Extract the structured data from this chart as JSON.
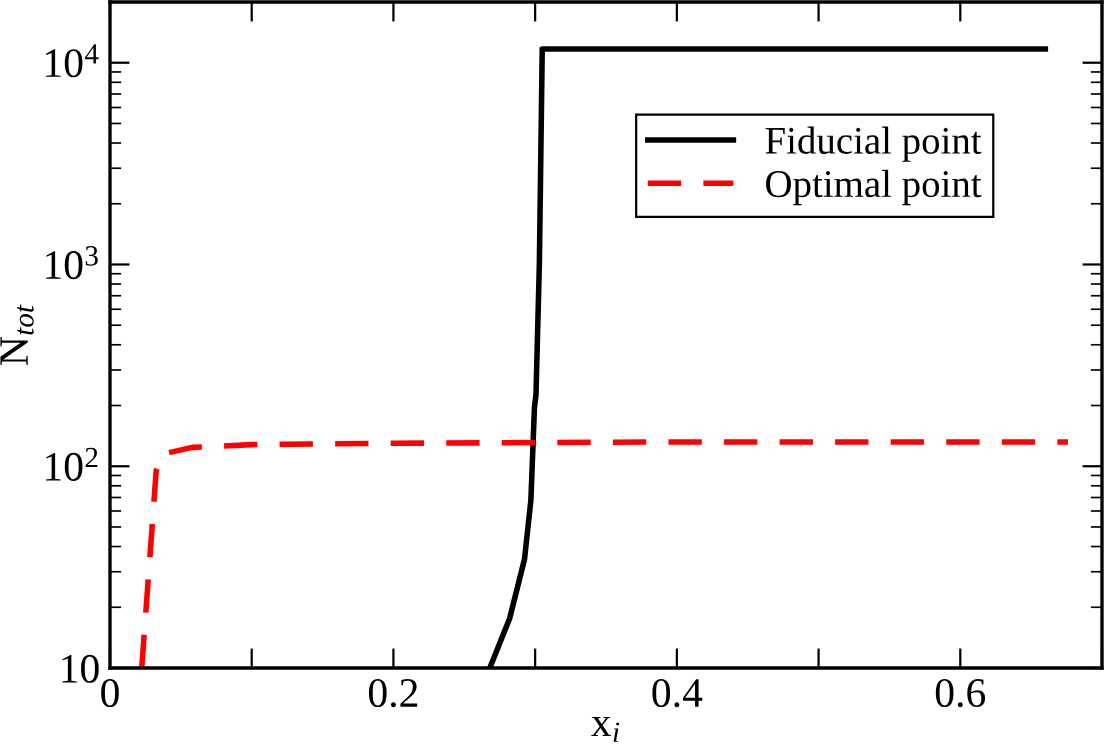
{
  "chart_data": {
    "type": "line",
    "xlabel": "x$_{i}$",
    "ylabel": "N$_{tot}$",
    "log": "y",
    "xlim": [
      0,
      0.7
    ],
    "ylim": [
      10,
      20000
    ],
    "xticks": [
      0,
      {
        "value": 0.1,
        "label": null
      },
      0.2,
      {
        "value": 0.3,
        "label": null
      },
      0.4,
      {
        "value": 0.5,
        "label": null
      },
      0.6,
      {
        "value": 0.7,
        "label": null
      }
    ],
    "yticks": [
      10,
      {
        "value": 100,
        "label": "10$^{2}$"
      },
      {
        "value": 1000,
        "label": "10$^{3}$"
      },
      {
        "value": 10000,
        "label": "10$^{4}$"
      }
    ],
    "legend": "top right",
    "grid": false,
    "marker": "none",
    "series": [
      {
        "name": "Fiducial point",
        "color": "#000000",
        "line_style": "solid",
        "x": [
          0.268,
          0.282,
          0.2925,
          0.297,
          0.2995,
          0.3006,
          0.303,
          0.305,
          0.31,
          0.4,
          0.5,
          0.66
        ],
        "values": [
          10,
          17.6,
          34.6,
          68,
          195,
          227,
          1020,
          11700,
          11700,
          11700,
          11700,
          11700
        ]
      },
      {
        "name": "Optimal point",
        "color": "#ff0000",
        "line_style": "dashed",
        "x": [
          0.0224,
          0.0326,
          0.0373,
          0.058,
          0.1,
          0.2,
          0.3,
          0.4,
          0.5,
          0.676
        ],
        "values": [
          10,
          95,
          115,
          124,
          128,
          130,
          131,
          132,
          132,
          132
        ]
      }
    ]
  }
}
